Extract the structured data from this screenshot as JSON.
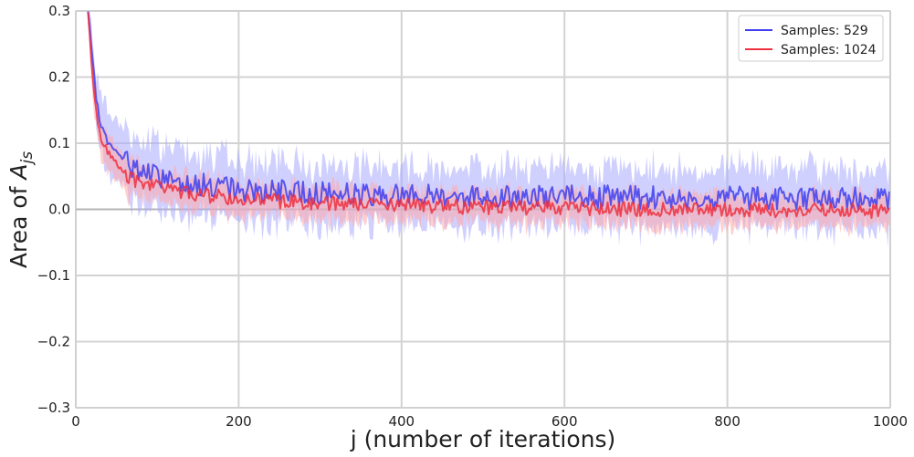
{
  "chart_data": {
    "type": "line",
    "xlabel": "j (number of iterations)",
    "ylabel": "Area of A_js",
    "ylabel_parts": {
      "prefix": "Area of ",
      "symbol": "A",
      "subscript": "js"
    },
    "xlim": [
      0,
      1000
    ],
    "ylim": [
      -0.3,
      0.3
    ],
    "xticks": [
      0,
      200,
      400,
      600,
      800,
      1000
    ],
    "xtick_labels": [
      "0",
      "200",
      "400",
      "600",
      "800",
      "1000"
    ],
    "yticks": [
      -0.3,
      -0.2,
      -0.1,
      0.0,
      0.1,
      0.2,
      0.3
    ],
    "ytick_labels": [
      "−0.3",
      "−0.2",
      "−0.1",
      "0.0",
      "0.1",
      "0.2",
      "0.3"
    ],
    "grid": true,
    "legend_position": "top-right",
    "series": [
      {
        "name": "Samples: 529",
        "color": "#4040ee",
        "band_color": "#aaaaff",
        "x": [
          15,
          18,
          20,
          25,
          30,
          40,
          50,
          60,
          70,
          80,
          100,
          120,
          150,
          200,
          250,
          300,
          350,
          400,
          450,
          500,
          550,
          600,
          650,
          700,
          750,
          800,
          850,
          900,
          950,
          1000
        ],
        "y": [
          0.3,
          0.26,
          0.23,
          0.17,
          0.13,
          0.1,
          0.085,
          0.075,
          0.065,
          0.058,
          0.05,
          0.045,
          0.038,
          0.03,
          0.027,
          0.025,
          0.023,
          0.022,
          0.021,
          0.02,
          0.02,
          0.019,
          0.019,
          0.018,
          0.018,
          0.018,
          0.017,
          0.017,
          0.017,
          0.016
        ],
        "band_halfwidth": [
          0.02,
          0.025,
          0.03,
          0.035,
          0.04,
          0.045,
          0.045,
          0.045,
          0.045,
          0.045,
          0.045,
          0.045,
          0.045,
          0.04,
          0.04,
          0.04,
          0.04,
          0.04,
          0.04,
          0.04,
          0.04,
          0.04,
          0.04,
          0.04,
          0.04,
          0.04,
          0.04,
          0.04,
          0.04,
          0.04
        ]
      },
      {
        "name": "Samples: 1024",
        "color": "#ee3040",
        "band_color": "#ffaaaa",
        "x": [
          15,
          18,
          20,
          25,
          30,
          40,
          50,
          60,
          70,
          80,
          100,
          120,
          150,
          200,
          250,
          300,
          350,
          400,
          450,
          500,
          550,
          600,
          650,
          700,
          750,
          800,
          850,
          900,
          950,
          1000
        ],
        "y": [
          0.3,
          0.25,
          0.21,
          0.15,
          0.11,
          0.085,
          0.07,
          0.055,
          0.045,
          0.04,
          0.033,
          0.028,
          0.022,
          0.016,
          0.012,
          0.01,
          0.008,
          0.006,
          0.004,
          0.003,
          0.002,
          0.001,
          0.001,
          0.0,
          0.0,
          0.0,
          -0.001,
          -0.001,
          -0.002,
          -0.002
        ],
        "band_halfwidth": [
          0.015,
          0.02,
          0.02,
          0.025,
          0.025,
          0.025,
          0.025,
          0.025,
          0.025,
          0.022,
          0.022,
          0.022,
          0.022,
          0.022,
          0.022,
          0.022,
          0.022,
          0.022,
          0.022,
          0.022,
          0.022,
          0.022,
          0.022,
          0.022,
          0.022,
          0.022,
          0.022,
          0.022,
          0.022,
          0.022
        ]
      }
    ]
  }
}
